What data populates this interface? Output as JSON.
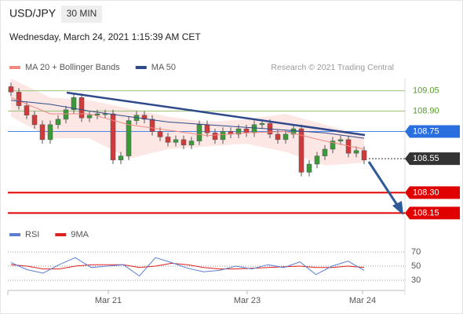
{
  "header": {
    "symbol": "USD/JPY",
    "interval": "30 MIN",
    "timestamp": "Wednesday, March 24, 2021 1:15:39 AM CET"
  },
  "chart_data": {
    "type": "candlestick",
    "legend": [
      {
        "name": "MA 20 + Bollinger Bands",
        "color": "#f08a80"
      },
      {
        "name": "MA 50",
        "color": "#2e4a8a"
      }
    ],
    "credit": "Research © 2021 Trading Central",
    "ylim": [
      108.1,
      109.14
    ],
    "up_color": "#3a9a3a",
    "down_color": "#d03a3a",
    "candles": {
      "open": [
        109.08,
        109.04,
        108.94,
        108.87,
        108.8,
        108.69,
        108.8,
        108.84,
        108.91,
        109.0,
        108.85,
        108.87,
        108.88,
        108.88,
        108.54,
        108.57,
        108.83,
        108.87,
        108.84,
        108.75,
        108.71,
        108.67,
        108.69,
        108.65,
        108.68,
        108.8,
        108.74,
        108.69,
        108.75,
        108.73,
        108.77,
        108.74,
        108.8,
        108.81,
        108.73,
        108.69,
        108.73,
        108.77,
        108.45,
        108.51,
        108.57,
        108.62,
        108.68,
        108.69,
        108.59,
        108.61
      ],
      "high": [
        109.11,
        109.07,
        108.97,
        108.9,
        108.83,
        108.83,
        108.87,
        108.94,
        109.03,
        109.03,
        108.9,
        108.91,
        108.91,
        108.91,
        108.6,
        108.86,
        108.9,
        108.9,
        108.87,
        108.78,
        108.74,
        108.72,
        108.72,
        108.71,
        108.83,
        108.83,
        108.77,
        108.78,
        108.78,
        108.8,
        108.8,
        108.83,
        108.84,
        108.84,
        108.76,
        108.76,
        108.8,
        108.8,
        108.54,
        108.6,
        108.65,
        108.71,
        108.72,
        108.72,
        108.64,
        108.64
      ],
      "low": [
        109.01,
        108.91,
        108.84,
        108.77,
        108.66,
        108.66,
        108.77,
        108.81,
        108.88,
        108.82,
        108.82,
        108.84,
        108.85,
        108.51,
        108.51,
        108.54,
        108.8,
        108.81,
        108.72,
        108.68,
        108.64,
        108.64,
        108.62,
        108.62,
        108.65,
        108.71,
        108.66,
        108.66,
        108.7,
        108.7,
        108.71,
        108.71,
        108.77,
        108.7,
        108.66,
        108.66,
        108.7,
        108.42,
        108.42,
        108.48,
        108.54,
        108.59,
        108.65,
        108.56,
        108.56,
        108.51
      ],
      "close": [
        109.04,
        108.94,
        108.87,
        108.8,
        108.69,
        108.8,
        108.84,
        108.91,
        109.0,
        108.85,
        108.87,
        108.88,
        108.88,
        108.54,
        108.57,
        108.83,
        108.87,
        108.84,
        108.75,
        108.71,
        108.67,
        108.69,
        108.65,
        108.68,
        108.8,
        108.74,
        108.69,
        108.75,
        108.73,
        108.77,
        108.74,
        108.8,
        108.81,
        108.73,
        108.69,
        108.73,
        108.77,
        108.45,
        108.51,
        108.57,
        108.62,
        108.68,
        108.69,
        108.59,
        108.61,
        108.54
      ]
    },
    "ma_x": [
      0,
      5,
      10,
      15,
      20,
      25,
      30,
      35,
      40,
      45
    ],
    "ma20": [
      109.0,
      108.88,
      108.88,
      108.8,
      108.76,
      108.72,
      108.74,
      108.75,
      108.68,
      108.62
    ],
    "bb_upper": [
      109.14,
      109.0,
      108.98,
      108.92,
      108.86,
      108.82,
      108.84,
      108.88,
      108.8,
      108.72
    ],
    "bb_lower": [
      108.86,
      108.7,
      108.7,
      108.55,
      108.62,
      108.64,
      108.66,
      108.6,
      108.5,
      108.52
    ],
    "ma50": [
      108.98,
      108.95,
      108.9,
      108.86,
      108.82,
      108.8,
      108.78,
      108.76,
      108.74,
      108.7
    ],
    "levels": [
      {
        "value": 109.05,
        "label": "109.05",
        "kind": "resistance"
      },
      {
        "value": 108.9,
        "label": "108.90",
        "kind": "resistance"
      },
      {
        "value": 108.75,
        "label": "108.75",
        "kind": "pivot"
      },
      {
        "value": 108.55,
        "label": "108.55",
        "kind": "last"
      },
      {
        "value": 108.3,
        "label": "108.30",
        "kind": "support"
      },
      {
        "value": 108.15,
        "label": "108.15",
        "kind": "support"
      }
    ],
    "x_labels": [
      "Mar 21",
      "Mar 23",
      "Mar 24"
    ],
    "rsi": {
      "legend": [
        {
          "name": "RSI",
          "color": "#5a7fd0"
        },
        {
          "name": "9MA",
          "color": "#e02020"
        }
      ],
      "ylim": [
        20,
        85
      ],
      "yticks": [
        30,
        50,
        70
      ],
      "rsi_values": [
        55,
        45,
        40,
        52,
        62,
        48,
        50,
        52,
        36,
        62,
        55,
        47,
        42,
        44,
        50,
        46,
        52,
        48,
        56,
        38,
        50,
        57,
        44
      ],
      "ma_values": [
        52,
        50,
        46,
        46,
        50,
        52,
        52,
        52,
        48,
        50,
        54,
        52,
        48,
        46,
        46,
        47,
        48,
        49,
        50,
        48,
        48,
        50,
        48
      ]
    }
  }
}
